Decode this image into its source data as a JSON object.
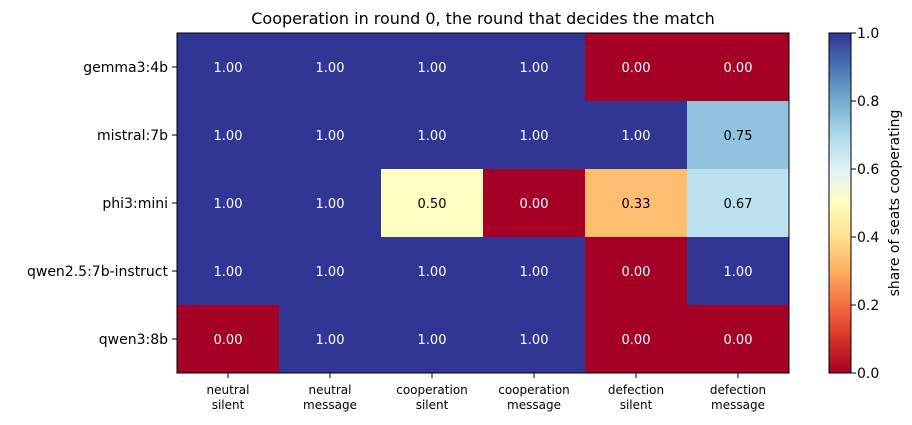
{
  "chart_data": {
    "type": "heatmap",
    "title": "Cooperation in round 0, the round that decides the match",
    "rows": [
      "gemma3:4b",
      "mistral:7b",
      "phi3:mini",
      "qwen2.5:7b-instruct",
      "qwen3:8b"
    ],
    "columns": [
      [
        "neutral",
        "silent"
      ],
      [
        "neutral",
        "message"
      ],
      [
        "cooperation",
        "silent"
      ],
      [
        "cooperation",
        "message"
      ],
      [
        "defection",
        "silent"
      ],
      [
        "defection",
        "message"
      ]
    ],
    "values": [
      [
        1.0,
        1.0,
        1.0,
        1.0,
        0.0,
        0.0
      ],
      [
        1.0,
        1.0,
        1.0,
        1.0,
        1.0,
        0.75
      ],
      [
        1.0,
        1.0,
        0.5,
        0.0,
        0.33,
        0.67
      ],
      [
        1.0,
        1.0,
        1.0,
        1.0,
        0.0,
        1.0
      ],
      [
        0.0,
        1.0,
        1.0,
        1.0,
        0.0,
        0.0
      ]
    ],
    "value_format": "2dp",
    "colormap": "RdYlBu",
    "vmin": 0.0,
    "vmax": 1.0,
    "colorbar": {
      "label": "share of seats cooperating",
      "ticks": [
        "0.0",
        "0.2",
        "0.4",
        "0.6",
        "0.8",
        "1.0"
      ],
      "tick_values": [
        0.0,
        0.2,
        0.4,
        0.6,
        0.8,
        1.0
      ]
    }
  }
}
